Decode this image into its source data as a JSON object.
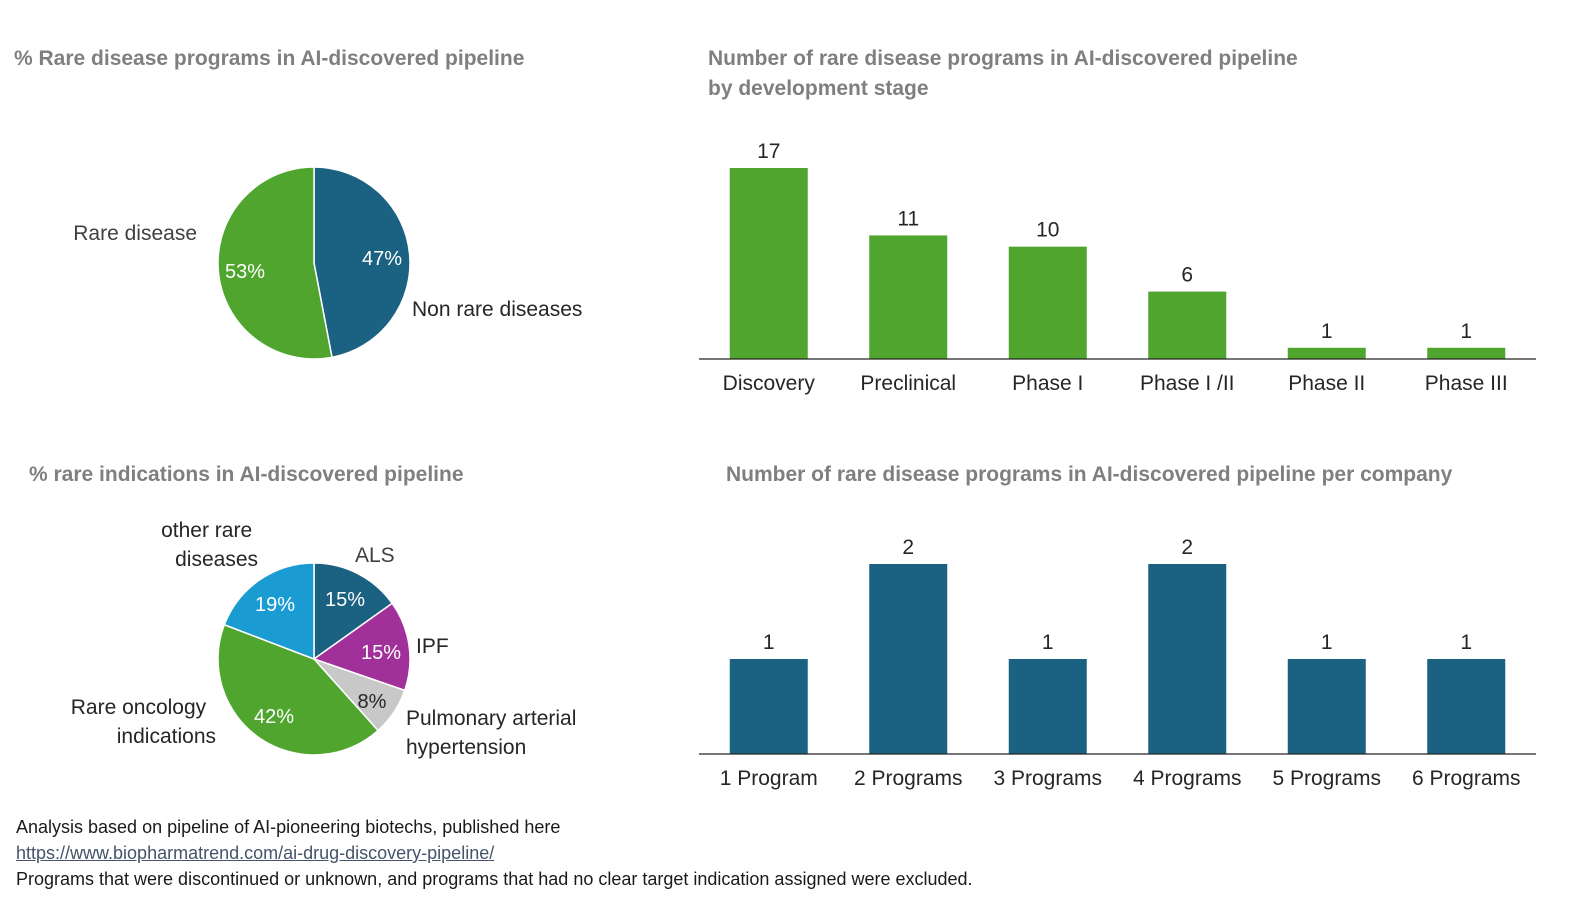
{
  "chart_data": [
    {
      "type": "pie",
      "title": "% Rare disease programs in AI-discovered pipeline",
      "slices": [
        {
          "label": "Non rare diseases",
          "value": 47,
          "value_label": "47%",
          "color": "#1a6182"
        },
        {
          "label": "Rare disease",
          "value": 53,
          "value_label": "53%",
          "color": "#4fa52e"
        }
      ]
    },
    {
      "type": "bar",
      "title": "Number of rare disease programs in AI-discovered pipeline",
      "subtitle": "by development stage",
      "categories": [
        "Discovery",
        "Preclinical",
        "Phase I",
        "Phase I /II",
        "Phase II",
        "Phase III"
      ],
      "values": [
        17,
        11,
        10,
        6,
        1,
        1
      ],
      "data_labels": [
        "17",
        "11",
        "10",
        "6",
        "1",
        "1"
      ],
      "color": "#4fa52e",
      "ylim": [
        0,
        17
      ],
      "grid": false
    },
    {
      "type": "pie",
      "title": "% rare indications in AI-discovered pipeline",
      "slices": [
        {
          "label": "ALS",
          "value": 15,
          "value_label": "15%",
          "color": "#1a6182"
        },
        {
          "label": "IPF",
          "value": 15,
          "value_label": "15%",
          "color": "#a2309a"
        },
        {
          "label": "Pulmonary arterial hypertension",
          "value": 8,
          "value_label": "8%",
          "color": "#c8c8c8"
        },
        {
          "label": "Rare oncology indications",
          "value": 42,
          "value_label": "42%",
          "color": "#4fa52e"
        },
        {
          "label": "other rare diseases",
          "value": 19,
          "value_label": "19%",
          "color": "#1a9bd2"
        }
      ]
    },
    {
      "type": "bar",
      "title": "Number of rare disease programs in AI-discovered pipeline per company",
      "categories": [
        "1 Program",
        "2 Programs",
        "3 Programs",
        "4 Programs",
        "5 Programs",
        "6 Programs"
      ],
      "values": [
        1,
        2,
        1,
        2,
        1,
        1
      ],
      "data_labels": [
        "1",
        "2",
        "1",
        "2",
        "1",
        "1"
      ],
      "color": "#1a6182",
      "ylim": [
        0,
        2
      ],
      "grid": false
    }
  ],
  "footer": {
    "line1": "Analysis based on pipeline of AI-pioneering biotechs, published here",
    "link": "https://www.biopharmatrend.com/ai-drug-discovery-pipeline/",
    "line3": "Programs that were discontinued or unknown, and programs that had no clear target indication assigned were excluded."
  }
}
